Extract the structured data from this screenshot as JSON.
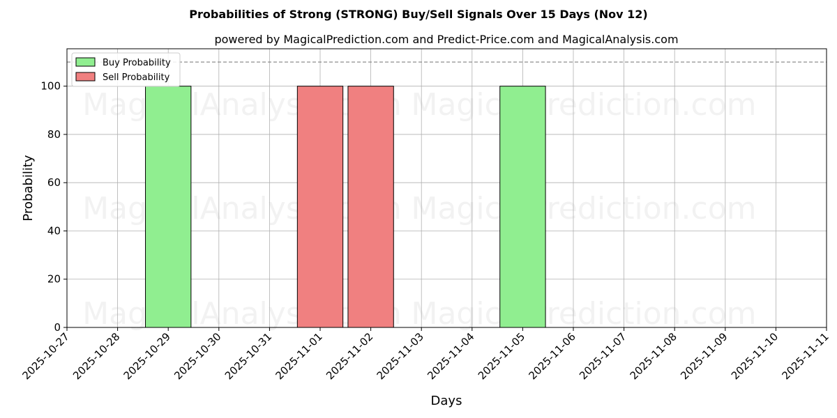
{
  "chart_data": {
    "type": "bar",
    "title": "Probabilities of Strong (STRONG) Buy/Sell Signals Over 15 Days (Nov 12)",
    "subtitle": "powered by MagicalPrediction.com and Predict-Price.com and MagicalAnalysis.com",
    "xlabel": "Days",
    "ylabel": "Probability",
    "x_ticks": [
      "2025-10-27",
      "2025-10-28",
      "2025-10-29",
      "2025-10-30",
      "2025-10-31",
      "2025-11-01",
      "2025-11-02",
      "2025-11-03",
      "2025-11-04",
      "2025-11-05",
      "2025-11-06",
      "2025-11-07",
      "2025-11-08",
      "2025-11-09",
      "2025-11-10",
      "2025-11-11"
    ],
    "xlim": [
      "2025-10-27",
      "2025-11-11"
    ],
    "y_ticks": [
      0,
      20,
      40,
      60,
      80,
      100
    ],
    "ylim": [
      0,
      115.5
    ],
    "threshold": 110,
    "grid": true,
    "legend_position": "top-left",
    "series": [
      {
        "name": "Buy Probability",
        "color": "#90ee90",
        "points": [
          {
            "date": "2025-10-29",
            "value": 100
          },
          {
            "date": "2025-11-05",
            "value": 100
          }
        ]
      },
      {
        "name": "Sell Probability",
        "color": "#f08080",
        "points": [
          {
            "date": "2025-11-01",
            "value": 100
          },
          {
            "date": "2025-11-02",
            "value": 100
          }
        ]
      }
    ],
    "watermarks": [
      "MagicalAnalysis.com",
      "MagicalPrediction.com"
    ]
  }
}
